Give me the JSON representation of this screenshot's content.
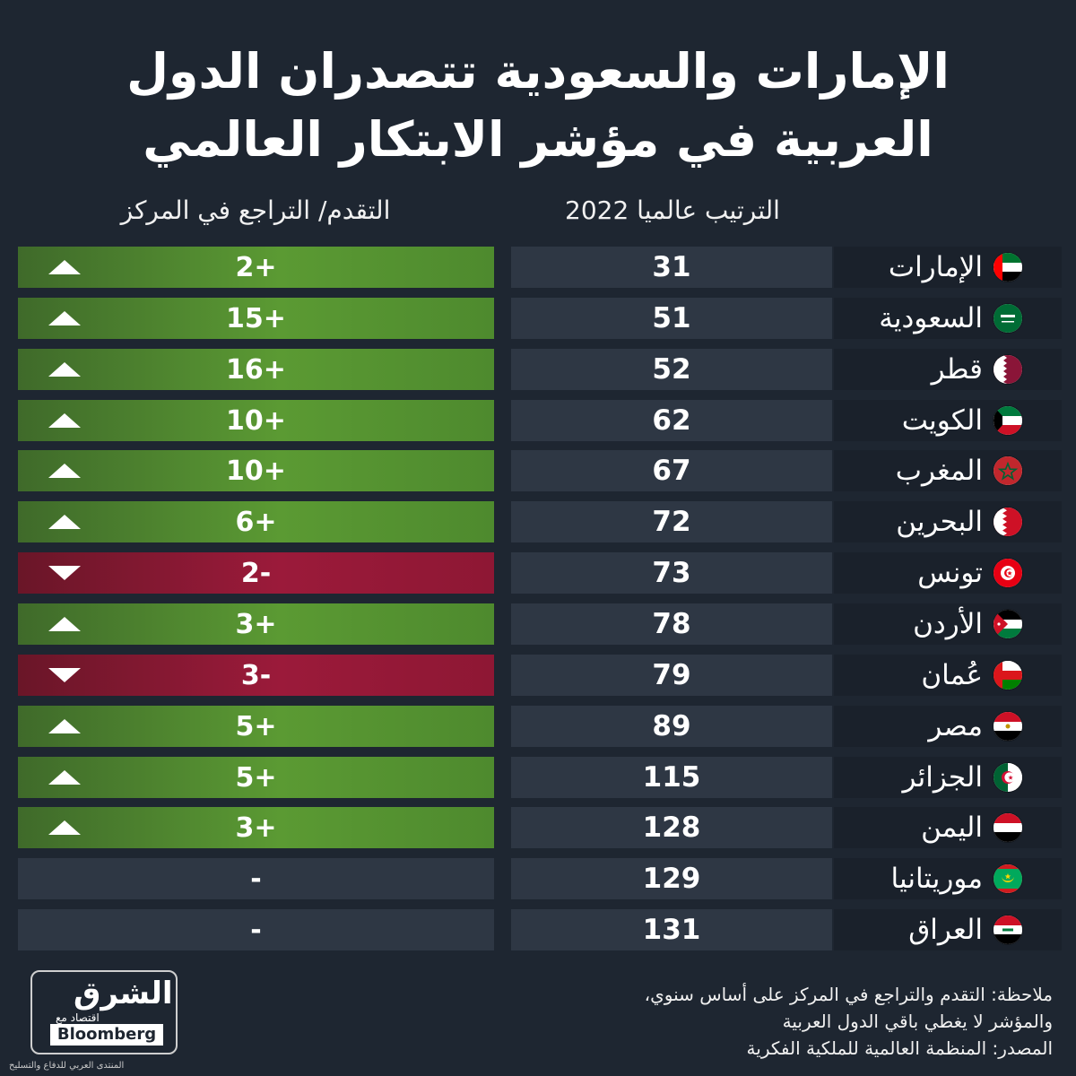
{
  "title_line1": "الإمارات والسعودية تتصدران الدول",
  "title_line2": "العربية في مؤشر الابتكار العالمي",
  "headers": {
    "rank": "الترتيب عالميا 2022",
    "change": "التقدم/ التراجع في المركز"
  },
  "rows": [
    {
      "country": "الإمارات",
      "flag": "uae-flag-icon",
      "rank": "31",
      "change": "2+",
      "trend": "up"
    },
    {
      "country": "السعودية",
      "flag": "saudi-flag-icon",
      "rank": "51",
      "change": "15+",
      "trend": "up"
    },
    {
      "country": "قطر",
      "flag": "qatar-flag-icon",
      "rank": "52",
      "change": "16+",
      "trend": "up"
    },
    {
      "country": "الكويت",
      "flag": "kuwait-flag-icon",
      "rank": "62",
      "change": "10+",
      "trend": "up"
    },
    {
      "country": "المغرب",
      "flag": "morocco-flag-icon",
      "rank": "67",
      "change": "10+",
      "trend": "up"
    },
    {
      "country": "البحرين",
      "flag": "bahrain-flag-icon",
      "rank": "72",
      "change": "6+",
      "trend": "up"
    },
    {
      "country": "تونس",
      "flag": "tunisia-flag-icon",
      "rank": "73",
      "change": "2-",
      "trend": "down"
    },
    {
      "country": "الأردن",
      "flag": "jordan-flag-icon",
      "rank": "78",
      "change": "3+",
      "trend": "up"
    },
    {
      "country": "عُمان",
      "flag": "oman-flag-icon",
      "rank": "79",
      "change": "3-",
      "trend": "down"
    },
    {
      "country": "مصر",
      "flag": "egypt-flag-icon",
      "rank": "89",
      "change": "5+",
      "trend": "up"
    },
    {
      "country": "الجزائر",
      "flag": "algeria-flag-icon",
      "rank": "115",
      "change": "5+",
      "trend": "up"
    },
    {
      "country": "اليمن",
      "flag": "yemen-flag-icon",
      "rank": "128",
      "change": "3+",
      "trend": "up"
    },
    {
      "country": "موريتانيا",
      "flag": "mauritania-flag-icon",
      "rank": "129",
      "change": "-",
      "trend": "none"
    },
    {
      "country": "العراق",
      "flag": "iraq-flag-icon",
      "rank": "131",
      "change": "-",
      "trend": "none"
    }
  ],
  "notes": {
    "line1": "ملاحظة: التقدم والتراجع في المركز على أساس سنوي،",
    "line2": "والمؤشر لا يغطي باقي الدول العربية",
    "line3": "المصدر: المنظمة العالمية للملكية الفكرية"
  },
  "logo": {
    "main": "الشرق",
    "sub": "اقتصاد",
    "partner": "Bloomberg",
    "with": "مع"
  },
  "watermark": "المنتدى العربي للدفاع والتسليح",
  "colors": {
    "background": "#1e2631",
    "up": "#5b9a33",
    "down": "#9b1a3a",
    "neutral": "#2e3744"
  }
}
